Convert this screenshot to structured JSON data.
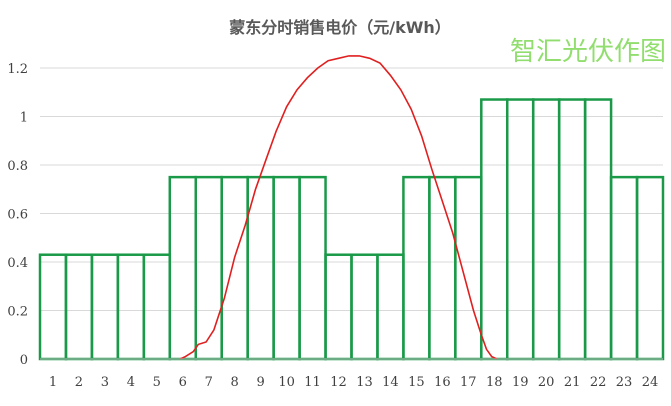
{
  "chart_data": {
    "type": "bar",
    "title": "蒙东分时销售电价（元/kWh）",
    "watermark": "智汇光伏作图",
    "xlabel": "",
    "ylabel": "",
    "ylim": [
      0,
      1.2
    ],
    "yticks": [
      "0",
      "0.2",
      "0.4",
      "0.6",
      "0.8",
      "1",
      "1.2"
    ],
    "categories": [
      "1",
      "2",
      "3",
      "4",
      "5",
      "6",
      "7",
      "8",
      "9",
      "10",
      "11",
      "12",
      "13",
      "14",
      "15",
      "16",
      "17",
      "18",
      "19",
      "20",
      "21",
      "22",
      "23",
      "24"
    ],
    "series": [
      {
        "type": "bar",
        "values": [
          0.43,
          0.43,
          0.43,
          0.43,
          0.43,
          0.75,
          0.75,
          0.75,
          0.75,
          0.75,
          0.75,
          0.43,
          0.43,
          0.43,
          0.75,
          0.75,
          0.75,
          1.07,
          1.07,
          1.07,
          1.07,
          1.07,
          0.75,
          0.75
        ]
      },
      {
        "type": "line",
        "x": [
          5.9,
          6.1,
          6.4,
          6.6,
          6.9,
          7.2,
          7.6,
          8.0,
          8.4,
          8.8,
          9.2,
          9.6,
          10.0,
          10.4,
          10.8,
          11.2,
          11.6,
          12.0,
          12.4,
          12.8,
          13.2,
          13.6,
          14.0,
          14.4,
          14.8,
          15.2,
          15.6,
          16.0,
          16.4,
          16.8,
          17.2,
          17.5,
          17.7,
          17.9,
          18.1
        ],
        "values": [
          0.0,
          0.01,
          0.03,
          0.06,
          0.07,
          0.12,
          0.25,
          0.42,
          0.55,
          0.7,
          0.82,
          0.94,
          1.04,
          1.11,
          1.16,
          1.2,
          1.23,
          1.24,
          1.25,
          1.25,
          1.24,
          1.22,
          1.17,
          1.11,
          1.03,
          0.92,
          0.78,
          0.65,
          0.52,
          0.36,
          0.2,
          0.1,
          0.04,
          0.01,
          0.0
        ]
      }
    ],
    "colors": {
      "bar_stroke": "#1a9a48",
      "line": "#e02020",
      "grid": "#d9d9d9",
      "watermark": "#7ed957"
    },
    "grid": true,
    "legend": "none"
  }
}
